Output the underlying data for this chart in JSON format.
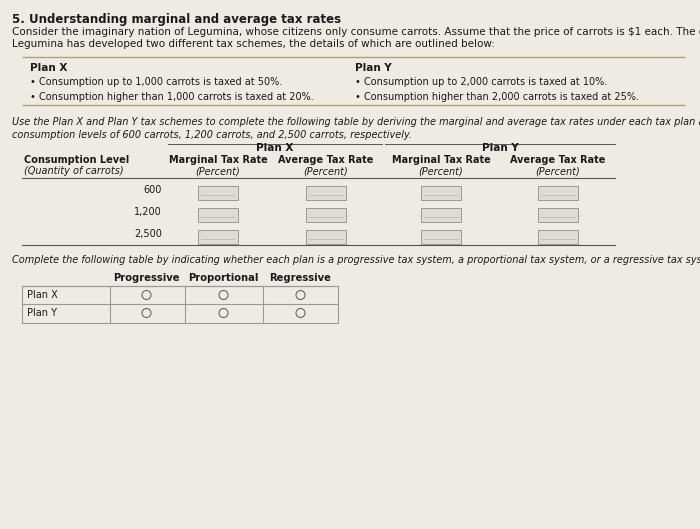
{
  "title": "5. Understanding marginal and average tax rates",
  "bg_color": "#eeeae4",
  "intro_text_line1": "Consider the imaginary nation of Legumina, whose citizens only consume carrots. Assume that the price of carrots is $1 each. The government of",
  "intro_text_line2": "Legumina has developed two different tax schemes, the details of which are outlined below:",
  "plan_x_title": "Plan X",
  "plan_x_bullets": [
    "Consumption up to 1,000 carrots is taxed at 50%.",
    "Consumption higher than 1,000 carrots is taxed at 20%."
  ],
  "plan_y_title": "Plan Y",
  "plan_y_bullets": [
    "Consumption up to 2,000 carrots is taxed at 10%.",
    "Consumption higher than 2,000 carrots is taxed at 25%."
  ],
  "mid_text_line1": "Use the Plan X and Plan Y tax schemes to complete the following table by deriving the marginal and average tax rates under each tax plan at the",
  "mid_text_line2": "consumption levels of 600 carrots, 1,200 carrots, and 2,500 carrots, respectively.",
  "table1_rows": [
    "600",
    "1,200",
    "2,500"
  ],
  "bottom_text": "Complete the following table by indicating whether each plan is a progressive tax system, a proportional tax system, or a regressive tax system.",
  "table2_col_headers": [
    "",
    "Progressive",
    "Proportional",
    "Regressive"
  ],
  "table2_rows": [
    "Plan X",
    "Plan Y"
  ],
  "gold_line_color": "#b5a469",
  "text_color": "#1a1a1a",
  "table_line_color": "#555555",
  "box_face_color": "#dedad4",
  "box_edge_color": "#999999"
}
